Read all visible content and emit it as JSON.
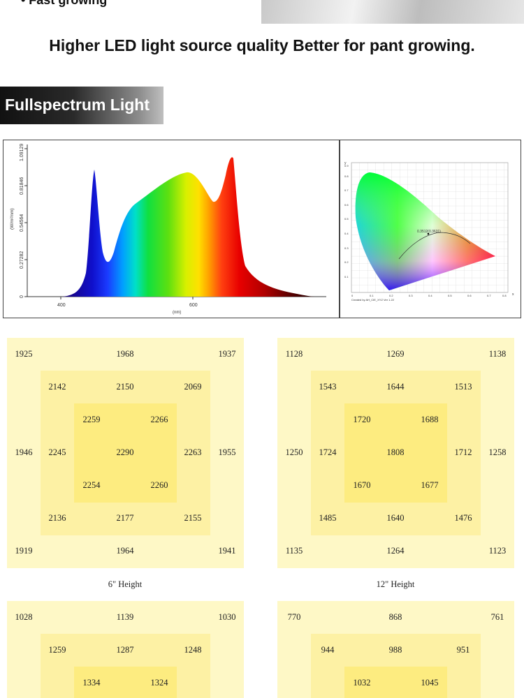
{
  "top_fragment": {
    "bullet_text": "• Fast growing"
  },
  "tagline": "Higher LED light source quality Better for pant growing.",
  "section_banner": {
    "title": "Fullspectrum Light"
  },
  "spectrum_chart": {
    "ylabel": "(W/m²/nm)",
    "xlabel": "(nm)",
    "y_ticks": [
      "0",
      "0.27282",
      "0.54564",
      "0.81846",
      "1.09129"
    ],
    "x_ticks": [
      "400",
      "600"
    ]
  },
  "cie_chart": {
    "point_label": "0.3512(0.3631)",
    "credit": "Created by AH_CIE_XYZ Ver 1.22",
    "y_axis_letter": "y",
    "x_axis_letter": "x",
    "y_ticks": [
      "0.1",
      "0.2",
      "0.3",
      "0.4",
      "0.5",
      "0.6",
      "0.7",
      "0.8",
      "0.9"
    ],
    "x_ticks": [
      "0",
      "0.1",
      "0.2",
      "0.3",
      "0.4",
      "0.5",
      "0.6",
      "0.7",
      "0.8"
    ]
  },
  "ppfd_grids": [
    {
      "label": "6\" Height",
      "rows": [
        [
          "1925",
          "",
          "",
          "1968",
          "",
          "",
          "1937"
        ],
        [
          "",
          "2142",
          "",
          "2150",
          "",
          "2069",
          ""
        ],
        [
          "",
          "",
          "2259",
          "",
          "2266",
          "",
          ""
        ],
        [
          "1946",
          "2245",
          "",
          "2290",
          "",
          "2263",
          "1955"
        ],
        [
          "",
          "",
          "2254",
          "",
          "2260",
          "",
          ""
        ],
        [
          "",
          "2136",
          "",
          "2177",
          "",
          "2155",
          ""
        ],
        [
          "1919",
          "",
          "",
          "1964",
          "",
          "",
          "1941"
        ]
      ]
    },
    {
      "label": "12\" Height",
      "rows": [
        [
          "1128",
          "",
          "",
          "1269",
          "",
          "",
          "1138"
        ],
        [
          "",
          "1543",
          "",
          "1644",
          "",
          "1513",
          ""
        ],
        [
          "",
          "",
          "1720",
          "",
          "1688",
          "",
          ""
        ],
        [
          "1250",
          "1724",
          "",
          "1808",
          "",
          "1712",
          "1258"
        ],
        [
          "",
          "",
          "1670",
          "",
          "1677",
          "",
          ""
        ],
        [
          "",
          "1485",
          "",
          "1640",
          "",
          "1476",
          ""
        ],
        [
          "1135",
          "",
          "",
          "1264",
          "",
          "",
          "1123"
        ]
      ]
    },
    {
      "label": "",
      "rows": [
        [
          "1028",
          "",
          "",
          "1139",
          "",
          "",
          "1030"
        ],
        [
          "",
          "1259",
          "",
          "1287",
          "",
          "1248",
          ""
        ],
        [
          "",
          "",
          "1334",
          "",
          "1324",
          "",
          ""
        ]
      ]
    },
    {
      "label": "",
      "rows": [
        [
          "770",
          "",
          "",
          "868",
          "",
          "",
          "761"
        ],
        [
          "",
          "944",
          "",
          "988",
          "",
          "951",
          ""
        ],
        [
          "",
          "",
          "1032",
          "",
          "1045",
          "",
          ""
        ]
      ]
    }
  ]
}
